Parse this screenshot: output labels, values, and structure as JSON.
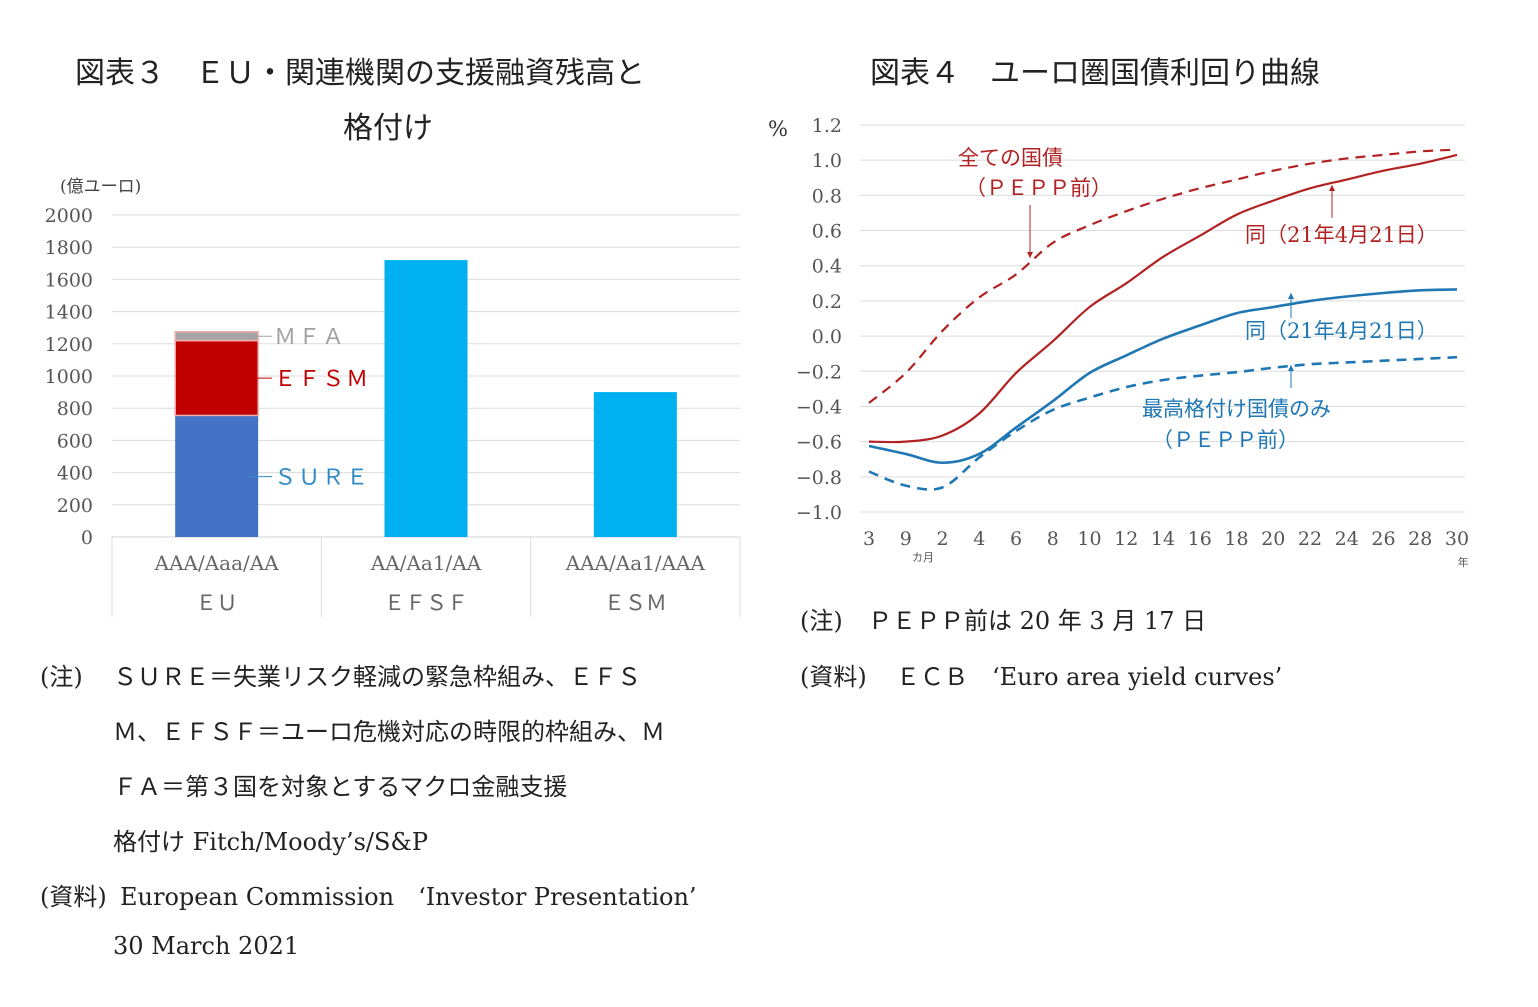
{
  "left": {
    "title_line1": "図表３　ＥＵ・関連機関の支援融資残高と",
    "title_line2": "格付け",
    "notes": [
      {
        "prefix": "(注)",
        "text": "ＳＵＲＥ＝失業リスク軽減の緊急枠組み、ＥＦＳ"
      },
      {
        "prefix": "",
        "text": "Ｍ、ＥＦＳＦ＝ユーロ危機対応の時限的枠組み、Ｍ"
      },
      {
        "prefix": "",
        "text": "ＦＡ＝第３国を対象とするマクロ金融支援"
      },
      {
        "prefix": "",
        "text": "格付け Fitch/Moody’s/S&P"
      },
      {
        "prefix": "(資料)",
        "text": "European Commission　‘Investor Presentation’"
      },
      {
        "prefix": "",
        "text": "30 March 2021"
      }
    ]
  },
  "right": {
    "title": "図表４　ユーロ圏国債利回り曲線",
    "notes": [
      {
        "prefix": "(注)",
        "text": "ＰＥＰＰ前は 20 年 3 月 17 日"
      },
      {
        "prefix": "(資料)",
        "text": "ＥＣＢ　‘Euro area yield curves’"
      }
    ]
  },
  "chart_data": [
    {
      "type": "bar",
      "stacked": true,
      "ylabel": "(億ユーロ)",
      "ylim": [
        0,
        2000
      ],
      "yticks": [
        0,
        200,
        400,
        600,
        800,
        1000,
        1200,
        1400,
        1600,
        1800,
        2000
      ],
      "grid": true,
      "categories": [
        {
          "name": "ＥＵ",
          "rating": "AAA/Aaa/AA"
        },
        {
          "name": "ＥＦＳＦ",
          "rating": "AA/Aa1/AA"
        },
        {
          "name": "ＥＳＭ",
          "rating": "AAA/Aa1/AAA"
        }
      ],
      "series": [
        {
          "name": "ＳＵＲＥ",
          "values": [
            755,
            0,
            0
          ],
          "color": "#4472c4",
          "label_color": "#2e8bc9"
        },
        {
          "name": "ＥＦＳＭ",
          "values": [
            465,
            0,
            0
          ],
          "color": "#c00000",
          "label_color": "#c00000"
        },
        {
          "name": "ＭＦＡ",
          "values": [
            55,
            0,
            0
          ],
          "color": "#a5a5a5",
          "label_color": "#a0a0a0"
        },
        {
          "name": "",
          "values": [
            0,
            1720,
            900
          ],
          "color": "#00b0f0"
        }
      ]
    },
    {
      "type": "line",
      "ylabel": "%",
      "ylim": [
        -1.0,
        1.2
      ],
      "yticks": [
        "1.2",
        "1.0",
        "0.8",
        "0.6",
        "0.4",
        "0.2",
        "0.0",
        "−0.2",
        "−0.4",
        "−0.6",
        "−0.8",
        "−1.0"
      ],
      "ytick_values": [
        1.2,
        1.0,
        0.8,
        0.6,
        0.4,
        0.2,
        0.0,
        -0.2,
        -0.4,
        -0.6,
        -0.8,
        -1.0
      ],
      "grid": true,
      "x": [
        "3",
        "9",
        "2",
        "4",
        "6",
        "8",
        "10",
        "12",
        "14",
        "16",
        "18",
        "20",
        "22",
        "24",
        "26",
        "28",
        "30"
      ],
      "x_unit_months": "カ月",
      "x_unit_years": "年",
      "series": [
        {
          "name": "全ての国債（ＰＥＰＰ前）",
          "style": "dashed",
          "color": "#b22222",
          "values": [
            -0.38,
            -0.21,
            0.03,
            0.22,
            0.35,
            0.53,
            0.63,
            0.71,
            0.78,
            0.84,
            0.89,
            0.94,
            0.98,
            1.01,
            1.03,
            1.05,
            1.06
          ]
        },
        {
          "name": "同（21年4月21日）",
          "style": "solid",
          "color": "#b22222",
          "values": [
            -0.6,
            -0.6,
            -0.565,
            -0.44,
            -0.21,
            -0.03,
            0.165,
            0.3,
            0.45,
            0.57,
            0.69,
            0.77,
            0.84,
            0.89,
            0.94,
            0.98,
            1.03
          ]
        },
        {
          "name": "同（21年4月21日）",
          "style": "solid",
          "color": "#1f77b4",
          "values": [
            -0.625,
            -0.67,
            -0.72,
            -0.67,
            -0.52,
            -0.37,
            -0.21,
            -0.11,
            -0.015,
            0.06,
            0.13,
            0.165,
            0.2,
            0.225,
            0.245,
            0.26,
            0.265
          ]
        },
        {
          "name": "最高格付け国債のみ（ＰＥＰＰ前）",
          "style": "dashed",
          "color": "#1f77b4",
          "values": [
            -0.77,
            -0.85,
            -0.86,
            -0.69,
            -0.54,
            -0.42,
            -0.35,
            -0.29,
            -0.25,
            -0.225,
            -0.205,
            -0.18,
            -0.16,
            -0.15,
            -0.14,
            -0.13,
            -0.12
          ]
        }
      ],
      "annotations": [
        {
          "line1": "全ての国債",
          "line2": "（ＰＥＰＰ前）",
          "color": "#b22222"
        },
        {
          "line1": "同（21年4月21日）",
          "color": "#b22222"
        },
        {
          "line1": "同（21年4月21日）",
          "color": "#1f77b4"
        },
        {
          "line1": "最高格付け国債のみ",
          "line2": "（ＰＥＰＰ前）",
          "color": "#1f77b4"
        }
      ]
    }
  ]
}
